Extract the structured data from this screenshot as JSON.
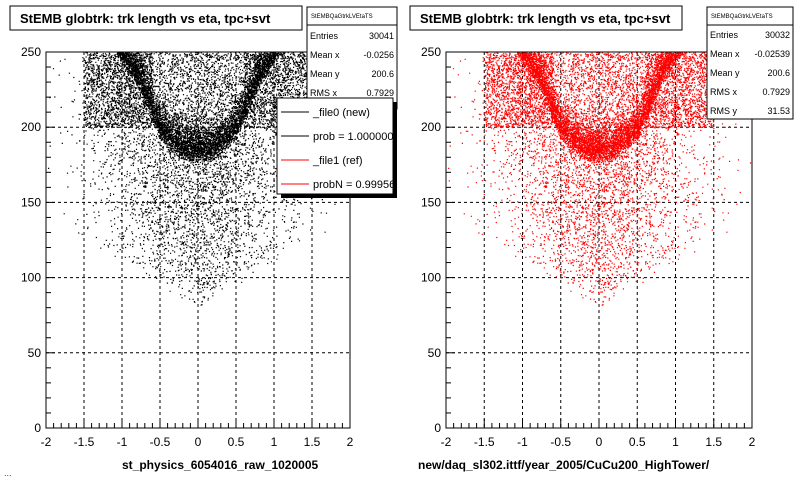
{
  "chart_data": [
    {
      "type": "scatter",
      "title": "StEMB globtrk: trk length vs eta, tpc+svt",
      "xlabel": "st_physics_6054016_raw_1020005",
      "ylabel": "",
      "xlim": [
        -2,
        2
      ],
      "ylim": [
        0,
        250
      ],
      "x_ticks": [
        "-2",
        "-1.5",
        "-1",
        "-0.5",
        "0",
        "0.5",
        "1",
        "1.5",
        "2"
      ],
      "y_ticks": [
        "0",
        "50",
        "100",
        "150",
        "200",
        "250"
      ],
      "grid": true,
      "marker_color": "#000000",
      "stats": {
        "name": "StEMBQaGtrkLVEtaTS",
        "rows": [
          {
            "label": "Entries",
            "value": "30041"
          },
          {
            "label": "Mean x",
            "value": "-0.0256"
          },
          {
            "label": "Mean y",
            "value": "200.6"
          },
          {
            "label": "RMS x",
            "value": "0.7929"
          }
        ]
      },
      "legend": {
        "placement": "right",
        "entries": [
          {
            "label": "_file0 (new)",
            "color": "#000000"
          },
          {
            "label": "prob = 1.000000",
            "color": "#000000"
          },
          {
            "label": "_file1 (ref)",
            "color": "#ff0000"
          },
          {
            "label": "probN = 0.99956",
            "color": "#ff0000"
          }
        ]
      },
      "distribution": {
        "band_center_y": 195,
        "band_width_y": 20,
        "band_eta_range": [
          -1.4,
          1.4
        ],
        "tail_min_y": 80,
        "entries": 30041
      }
    },
    {
      "type": "scatter",
      "title": "StEMB globtrk: trk length vs eta, tpc+svt",
      "xlabel": "new/daq_sl302.ittf/year_2005/CuCu200_HighTower/",
      "ylabel": "",
      "xlim": [
        -2,
        2
      ],
      "ylim": [
        0,
        250
      ],
      "x_ticks": [
        "-2",
        "-1.5",
        "-1",
        "-0.5",
        "0",
        "0.5",
        "1",
        "1.5",
        "2"
      ],
      "y_ticks": [
        "0",
        "50",
        "100",
        "150",
        "200",
        "250"
      ],
      "grid": true,
      "marker_color": "#ff0000",
      "stats": {
        "name": "StEMBQaGtrkLVEtaTS",
        "rows": [
          {
            "label": "Entries",
            "value": "30032"
          },
          {
            "label": "Mean x",
            "value": "-0.02539"
          },
          {
            "label": "Mean y",
            "value": "200.6"
          },
          {
            "label": "RMS x",
            "value": "0.7929"
          },
          {
            "label": "RMS y",
            "value": "31.53"
          }
        ]
      },
      "distribution": {
        "band_center_y": 195,
        "band_width_y": 20,
        "band_eta_range": [
          -1.4,
          1.4
        ],
        "tail_min_y": 80,
        "entries": 30032
      }
    }
  ],
  "footer": "..."
}
